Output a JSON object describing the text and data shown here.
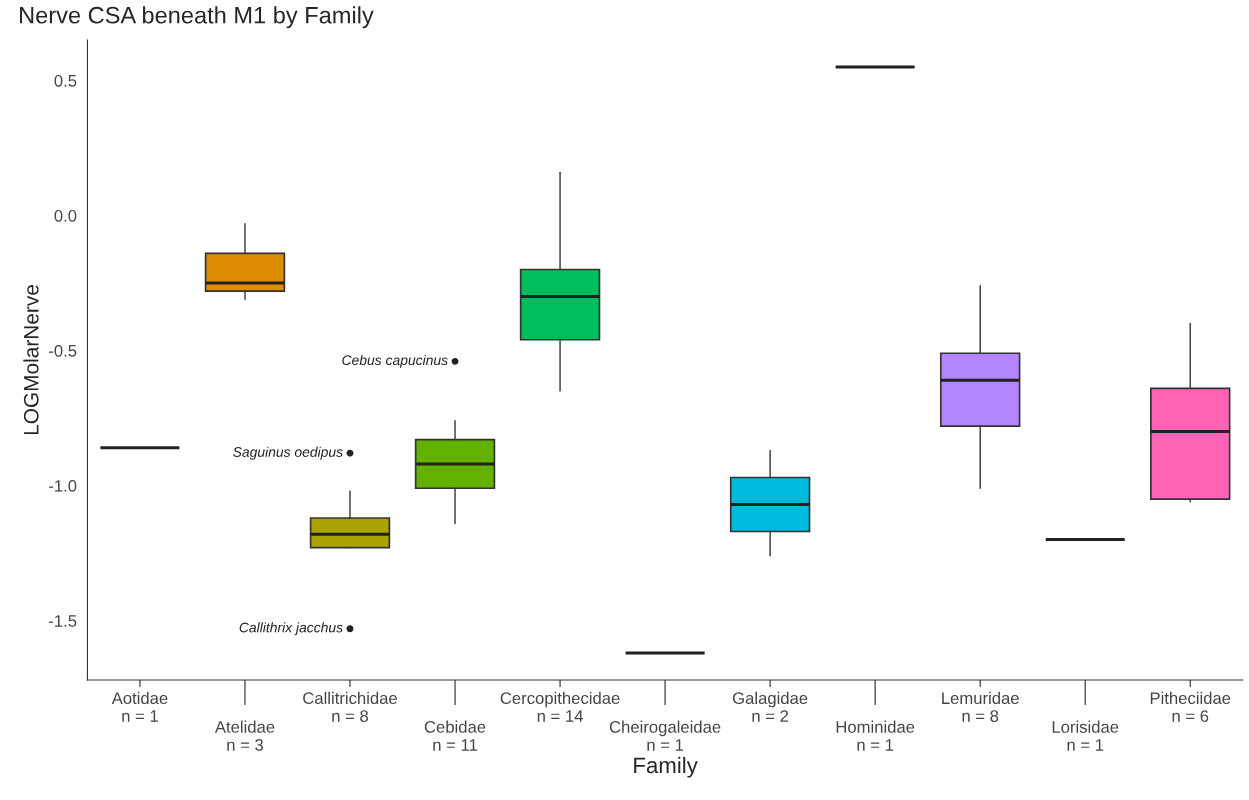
{
  "chart_data": {
    "type": "box",
    "title": "Nerve CSA beneath M1 by Family",
    "xlabel": "Family",
    "ylabel": "LOGMolarNerve",
    "categories": [
      "Aotidae\nn = 1",
      "Atelidae\nn = 3",
      "Callitrichidae\nn = 8",
      "Cebidae\nn = 11",
      "Cercopithecidae\nn = 14",
      "Cheirogaleidae\nn = 1",
      "Galagidae\nn = 2",
      "Hominidae\nn = 1",
      "Lemuridae\nn = 8",
      "Lorisidae\nn = 1",
      "Pitheciidae\nn = 6"
    ],
    "boxes": [
      {
        "low": -0.86,
        "q1": -0.86,
        "median": -0.86,
        "q3": -0.86,
        "high": -0.86
      },
      {
        "low": -0.31,
        "q1": -0.28,
        "median": -0.25,
        "q3": -0.14,
        "high": -0.03
      },
      {
        "low": -1.23,
        "q1": -1.23,
        "median": -1.18,
        "q3": -1.12,
        "high": -1.02,
        "outliers": [
          -0.88,
          -1.53
        ]
      },
      {
        "low": -1.14,
        "q1": -1.01,
        "median": -0.92,
        "q3": -0.83,
        "high": -0.76,
        "outliers": [
          -0.54
        ]
      },
      {
        "low": -0.65,
        "q1": -0.46,
        "median": -0.3,
        "q3": -0.2,
        "high": 0.16
      },
      {
        "low": -1.62,
        "q1": -1.62,
        "median": -1.62,
        "q3": -1.62,
        "high": -1.62
      },
      {
        "low": -1.26,
        "q1": -1.17,
        "median": -1.07,
        "q3": -0.97,
        "high": -0.87
      },
      {
        "low": 0.55,
        "q1": 0.55,
        "median": 0.55,
        "q3": 0.55,
        "high": 0.55
      },
      {
        "low": -1.01,
        "q1": -0.78,
        "median": -0.61,
        "q3": -0.51,
        "high": -0.26
      },
      {
        "low": -1.2,
        "q1": -1.2,
        "median": -1.2,
        "q3": -1.2,
        "high": -1.2
      },
      {
        "low": -1.06,
        "q1": -1.05,
        "median": -0.8,
        "q3": -0.64,
        "high": -0.4
      }
    ],
    "colors": [
      "#333333",
      "#de8c00",
      "#aba300",
      "#64b200",
      "#00bd5c",
      "#333333",
      "#00bade",
      "#333333",
      "#b385ff",
      "#333333",
      "#ff63b6"
    ],
    "annotations": [
      "Saguinus oedipus",
      "Callithrix jacchus",
      "Cebus capucinus"
    ],
    "ylim": [
      -1.72,
      0.65
    ],
    "yticks": [
      {
        "value": 0.5,
        "label": "0.5"
      },
      {
        "value": 0.0,
        "label": "0.0"
      },
      {
        "value": -0.5,
        "label": "-0.5"
      },
      {
        "value": -1.0,
        "label": "-1.0"
      },
      {
        "value": -1.5,
        "label": "-1.5"
      }
    ],
    "grid": false,
    "legend": false
  }
}
